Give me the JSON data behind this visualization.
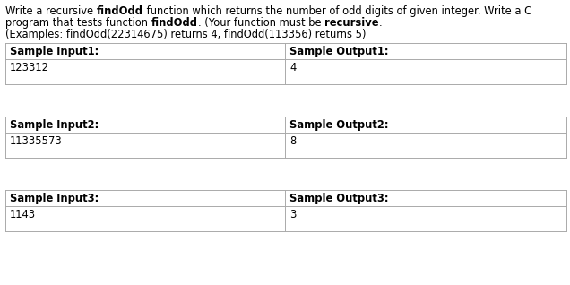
{
  "title_lines": [
    [
      [
        "Write a recursive ",
        false
      ],
      [
        "findOdd",
        true
      ],
      [
        " function which returns the number of odd digits of given integer. Write a C",
        false
      ]
    ],
    [
      [
        "program that tests function ",
        false
      ],
      [
        "findOdd",
        true
      ],
      [
        ". (Your function must be ",
        false
      ],
      [
        "recursive",
        true
      ],
      [
        ".",
        false
      ]
    ],
    [
      [
        "(Examples: findOdd(22314675) returns 4, findOdd(113356) returns 5)",
        false
      ]
    ]
  ],
  "tables": [
    {
      "input_label": "Sample Input1:",
      "output_label": "Sample Output1:",
      "input_value": "123312",
      "output_value": "4"
    },
    {
      "input_label": "Sample Input2:",
      "output_label": "Sample Output2:",
      "input_value": "11335573",
      "output_value": "8"
    },
    {
      "input_label": "Sample Input3:",
      "output_label": "Sample Output3:",
      "input_value": "1143",
      "output_value": "3"
    }
  ],
  "bg_color": "#ffffff",
  "text_color": "#000000",
  "table_border_color": "#aaaaaa",
  "font_size_title": 8.3,
  "font_size_table": 8.3,
  "fig_width": 6.36,
  "fig_height": 3.18,
  "dpi": 100
}
